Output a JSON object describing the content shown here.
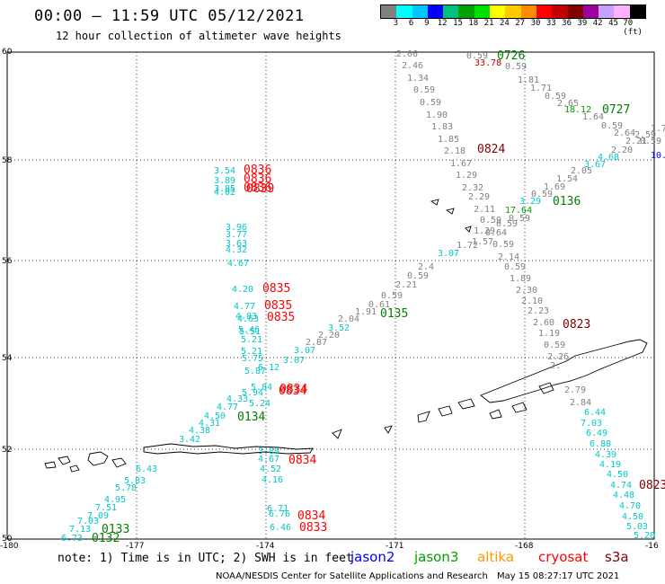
{
  "title": "00:00 – 11:59 UTC 05/12/2021",
  "subtitle": "12 hour collection of altimeter wave heights",
  "colorbar": {
    "labels": [
      "3",
      "6",
      "9",
      "12",
      "15",
      "18",
      "21",
      "24",
      "27",
      "30",
      "33",
      "36",
      "39",
      "42",
      "45",
      "70 (ft)"
    ],
    "colors": [
      "#808080",
      "#00ffff",
      "#00c8ff",
      "#0000ff",
      "#00c080",
      "#00a000",
      "#00e000",
      "#ffff00",
      "#ffc800",
      "#ff8c00",
      "#ff0000",
      "#c00000",
      "#800000",
      "#a000a0",
      "#c8a0ff",
      "#ffb0ff",
      "#000000"
    ]
  },
  "axes": {
    "lat_labels": [
      "60",
      "58",
      "56",
      "54",
      "52",
      "50"
    ],
    "lon_labels": [
      "-180",
      "-177",
      "-174",
      "-171",
      "-168",
      "-16"
    ]
  },
  "times": [
    {
      "t": "0726",
      "c": "#008000"
    },
    {
      "t": "0727",
      "c": "#008000"
    },
    {
      "t": "0824",
      "c": "#800000"
    },
    {
      "t": "0136",
      "c": "#008000"
    },
    {
      "t": "0836",
      "c": "#ff0000"
    },
    {
      "t": "0836",
      "c": "#ff0000"
    },
    {
      "t": "0836",
      "c": "#ff0000"
    },
    {
      "t": "0839",
      "c": "#ff0000"
    },
    {
      "t": "0835",
      "c": "#ff0000"
    },
    {
      "t": "0835",
      "c": "#ff0000"
    },
    {
      "t": "0835",
      "c": "#ff0000"
    },
    {
      "t": "0135",
      "c": "#008000"
    },
    {
      "t": "0823",
      "c": "#800000"
    },
    {
      "t": "0834",
      "c": "#ff0000"
    },
    {
      "t": "0834",
      "c": "#ff0000"
    },
    {
      "t": "0134",
      "c": "#008000"
    },
    {
      "t": "0834",
      "c": "#ff0000"
    },
    {
      "t": "0834",
      "c": "#ff0000"
    },
    {
      "t": "0833",
      "c": "#ff0000"
    },
    {
      "t": "0133",
      "c": "#008000"
    },
    {
      "t": "0132",
      "c": "#008000"
    },
    {
      "t": "0823",
      "c": "#800000"
    }
  ],
  "values": [
    {
      "v": "2.06",
      "c": "#808080"
    },
    {
      "v": "2.46",
      "c": "#808080"
    },
    {
      "v": "1.34",
      "c": "#808080"
    },
    {
      "v": "0.59",
      "c": "#808080"
    },
    {
      "v": "0.59",
      "c": "#808080"
    },
    {
      "v": "1.90",
      "c": "#808080"
    },
    {
      "v": "1.83",
      "c": "#808080"
    },
    {
      "v": "1.85",
      "c": "#808080"
    },
    {
      "v": "2.18",
      "c": "#808080"
    },
    {
      "v": "1.67",
      "c": "#808080"
    },
    {
      "v": "1.29",
      "c": "#808080"
    },
    {
      "v": "2.32",
      "c": "#808080"
    },
    {
      "v": "2.29",
      "c": "#808080"
    },
    {
      "v": "2.11",
      "c": "#808080"
    },
    {
      "v": "0.59",
      "c": "#808080"
    },
    {
      "v": "1.29",
      "c": "#808080"
    },
    {
      "v": "1.72",
      "c": "#808080"
    },
    {
      "v": "0.59",
      "c": "#808080"
    },
    {
      "v": "2.14",
      "c": "#808080"
    },
    {
      "v": "0.59",
      "c": "#808080"
    },
    {
      "v": "1.89",
      "c": "#808080"
    },
    {
      "v": "2.30",
      "c": "#808080"
    },
    {
      "v": "2.10",
      "c": "#808080"
    },
    {
      "v": "2.23",
      "c": "#808080"
    },
    {
      "v": "2.60",
      "c": "#808080"
    },
    {
      "v": "1.19",
      "c": "#808080"
    },
    {
      "v": "0.59",
      "c": "#808080"
    },
    {
      "v": "2.26",
      "c": "#808080"
    },
    {
      "v": "2.",
      "c": "#808080"
    },
    {
      "v": "2.79",
      "c": "#808080"
    },
    {
      "v": "2.84",
      "c": "#808080"
    },
    {
      "v": "0.59",
      "c": "#808080"
    },
    {
      "v": "33.78",
      "c": "#c00000"
    },
    {
      "v": "0.59",
      "c": "#808080"
    },
    {
      "v": "1.81",
      "c": "#808080"
    },
    {
      "v": "1.71",
      "c": "#808080"
    },
    {
      "v": "0.59",
      "c": "#808080"
    },
    {
      "v": "2.65",
      "c": "#808080"
    },
    {
      "v": "18.12",
      "c": "#00a000"
    },
    {
      "v": "1.64",
      "c": "#808080"
    },
    {
      "v": "0.59",
      "c": "#808080"
    },
    {
      "v": "2.64",
      "c": "#808080"
    },
    {
      "v": "2.59",
      "c": "#808080"
    },
    {
      "v": "1.7",
      "c": "#808080"
    },
    {
      "v": "2.21",
      "c": "#808080"
    },
    {
      "v": "0.59",
      "c": "#808080"
    },
    {
      "v": "2.20",
      "c": "#808080"
    },
    {
      "v": "10.",
      "c": "#0000ff"
    },
    {
      "v": "4.68",
      "c": "#00c8c8"
    },
    {
      "v": "3.67",
      "c": "#00c8c8"
    },
    {
      "v": "2.05",
      "c": "#808080"
    },
    {
      "v": "1.54",
      "c": "#808080"
    },
    {
      "v": "1.69",
      "c": "#808080"
    },
    {
      "v": "0.59",
      "c": "#808080"
    },
    {
      "v": "3.29",
      "c": "#00c8c8"
    },
    {
      "v": "17.64",
      "c": "#00a000"
    },
    {
      "v": "0.59",
      "c": "#808080"
    },
    {
      "v": "0.59",
      "c": "#808080"
    },
    {
      "v": "0.64",
      "c": "#808080"
    },
    {
      "v": "1.57",
      "c": "#808080"
    },
    {
      "v": "3.07",
      "c": "#00c8c8"
    },
    {
      "v": "2.4",
      "c": "#808080"
    },
    {
      "v": "0.59",
      "c": "#808080"
    },
    {
      "v": "2.21",
      "c": "#808080"
    },
    {
      "v": "0.59",
      "c": "#808080"
    },
    {
      "v": "0.61",
      "c": "#808080"
    },
    {
      "v": "1.91",
      "c": "#808080"
    },
    {
      "v": "2.04",
      "c": "#808080"
    },
    {
      "v": "3.52",
      "c": "#00c8c8"
    },
    {
      "v": "2.20",
      "c": "#808080"
    },
    {
      "v": "2.87",
      "c": "#808080"
    },
    {
      "v": "3.07",
      "c": "#00c8c8"
    },
    {
      "v": "3.07",
      "c": "#00c8c8"
    },
    {
      "v": "3.54",
      "c": "#00c8c8"
    },
    {
      "v": "3.89",
      "c": "#00c8c8"
    },
    {
      "v": "3.85",
      "c": "#00c8c8"
    },
    {
      "v": "4.02",
      "c": "#00c8c8"
    },
    {
      "v": "3.96",
      "c": "#00c8c8"
    },
    {
      "v": "3.77",
      "c": "#00c8c8"
    },
    {
      "v": "3.63",
      "c": "#00c8c8"
    },
    {
      "v": "4.32",
      "c": "#00c8c8"
    },
    {
      "v": "4.67",
      "c": "#00c8c8"
    },
    {
      "v": "4.20",
      "c": "#00c8c8"
    },
    {
      "v": "4.77",
      "c": "#00c8c8"
    },
    {
      "v": "4.83",
      "c": "#00c8c8"
    },
    {
      "v": "4.63",
      "c": "#00c8c8"
    },
    {
      "v": "5.46",
      "c": "#00c8c8"
    },
    {
      "v": "5.51",
      "c": "#00c8c8"
    },
    {
      "v": "5.21",
      "c": "#00c8c8"
    },
    {
      "v": "5.21",
      "c": "#00c8c8"
    },
    {
      "v": "5.75",
      "c": "#00c8c8"
    },
    {
      "v": "5.87",
      "c": "#00c8c8"
    },
    {
      "v": "6.12",
      "c": "#00c8c8"
    },
    {
      "v": "5.84",
      "c": "#00c8c8"
    },
    {
      "v": "5.94",
      "c": "#00c8c8"
    },
    {
      "v": "5.24",
      "c": "#00c8c8"
    },
    {
      "v": "4.33",
      "c": "#00c8c8"
    },
    {
      "v": "4.77",
      "c": "#00c8c8"
    },
    {
      "v": "4.50",
      "c": "#00c8c8"
    },
    {
      "v": "4.31",
      "c": "#00c8c8"
    },
    {
      "v": "4.38",
      "c": "#00c8c8"
    },
    {
      "v": "3.42",
      "c": "#00c8c8"
    },
    {
      "v": "3.89",
      "c": "#00c8c8"
    },
    {
      "v": "4.67",
      "c": "#00c8c8"
    },
    {
      "v": "4.52",
      "c": "#00c8c8"
    },
    {
      "v": "4.16",
      "c": "#00c8c8"
    },
    {
      "v": "6.71",
      "c": "#00c8c8"
    },
    {
      "v": "6.76",
      "c": "#00c8c8"
    },
    {
      "v": "6.46",
      "c": "#00c8c8"
    },
    {
      "v": "6.43",
      "c": "#00c8c8"
    },
    {
      "v": "5.83",
      "c": "#00c8c8"
    },
    {
      "v": "5.78",
      "c": "#00c8c8"
    },
    {
      "v": "4.95",
      "c": "#00c8c8"
    },
    {
      "v": "7.51",
      "c": "#00c8c8"
    },
    {
      "v": "7.09",
      "c": "#00c8c8"
    },
    {
      "v": "7.03",
      "c": "#00c8c8"
    },
    {
      "v": "7.13",
      "c": "#00c8c8"
    },
    {
      "v": "6.73",
      "c": "#00c8c8"
    },
    {
      "v": "6.44",
      "c": "#00c8c8"
    },
    {
      "v": "7.03",
      "c": "#00c8c8"
    },
    {
      "v": "6.49",
      "c": "#00c8c8"
    },
    {
      "v": "6.88",
      "c": "#00c8c8"
    },
    {
      "v": "4.39",
      "c": "#00c8c8"
    },
    {
      "v": "4.19",
      "c": "#00c8c8"
    },
    {
      "v": "4.50",
      "c": "#00c8c8"
    },
    {
      "v": "4.74",
      "c": "#00c8c8"
    },
    {
      "v": "4.48",
      "c": "#00c8c8"
    },
    {
      "v": "4.70",
      "c": "#00c8c8"
    },
    {
      "v": "4.50",
      "c": "#00c8c8"
    },
    {
      "v": "5.03",
      "c": "#00c8c8"
    },
    {
      "v": "5.20",
      "c": "#00c8c8"
    },
    {
      "v": "3.75",
      "c": "#00c8c8"
    },
    {
      "v": "4.97",
      "c": "#00c8c8"
    },
    {
      "v": "5.50",
      "c": "#00c8c8"
    },
    {
      "v": "7.15",
      "c": "#00c8c8"
    }
  ],
  "footnote": "note: 1) Time is in UTC; 2) SWH is in feet",
  "legend": [
    {
      "name": "jason2",
      "color": "#0000ff"
    },
    {
      "name": "jason3",
      "color": "#00a000"
    },
    {
      "name": "altika",
      "color": "#ff9900"
    },
    {
      "name": "cryosat",
      "color": "#ff0000"
    },
    {
      "name": "s3a",
      "color": "#800000"
    }
  ],
  "credit": "NOAA/NESDIS Center for Satellite Applications and Research",
  "timestamp": "May 15 08:27:17 UTC 2021"
}
